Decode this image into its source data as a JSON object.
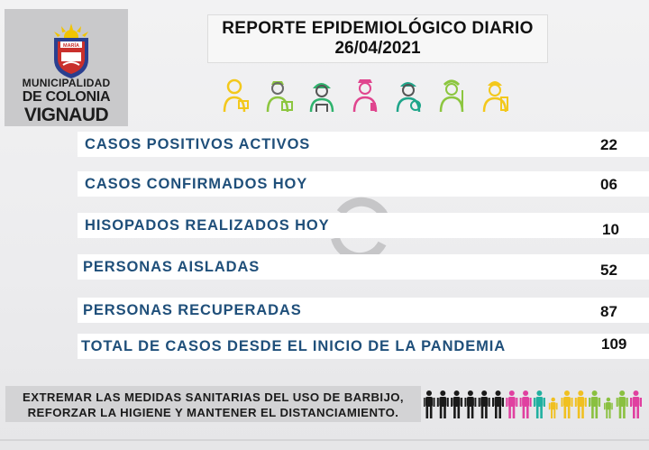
{
  "logo": {
    "shield_text_top": "MARÍA",
    "line1": "MUNICIPALIDAD",
    "line2": "DE COLONIA",
    "line3": "VIGNAUD"
  },
  "header": {
    "title": "REPORTE EPIDEMIOLÓGICO DIARIO",
    "date": "26/04/2021"
  },
  "workers_icons": [
    "worker-yellow-icon",
    "worker-green-icon",
    "worker-green-helmet-icon",
    "worker-pink-icon",
    "worker-teal-icon",
    "worker-green-nurse-icon",
    "worker-yellow-cook-icon"
  ],
  "stats": [
    {
      "label": "CASOS POSITIVOS ACTIVOS",
      "value": "22"
    },
    {
      "label": "CASOS CONFIRMADOS HOY",
      "value": "06"
    },
    {
      "label": "HISOPADOS REALIZADOS HOY",
      "value": "10"
    },
    {
      "label": "PERSONAS AISLADAS",
      "value": "52"
    },
    {
      "label": "PERSONAS RECUPERADAS",
      "value": "87"
    },
    {
      "label": "TOTAL DE CASOS DESDE EL INICIO DE LA PANDEMIA",
      "value": "109"
    }
  ],
  "footer": {
    "line1": "EXTREMAR LAS MEDIDAS SANITARIAS DEL USO DE BARBIJO,",
    "line2": "REFORZAR LA HIGIENE Y MANTENER EL DISTANCIAMIENTO."
  },
  "colors": {
    "label": "#1f4f7a",
    "people": [
      "#1a1a1a",
      "#1a1a1a",
      "#1a1a1a",
      "#1a1a1a",
      "#1a1a1a",
      "#1a1a1a",
      "#e040a0",
      "#e040a0",
      "#20b0a0",
      "#f0c020",
      "#f0c020",
      "#f0c020",
      "#8ac040",
      "#8ac040",
      "#8ac040",
      "#e040a0"
    ]
  }
}
